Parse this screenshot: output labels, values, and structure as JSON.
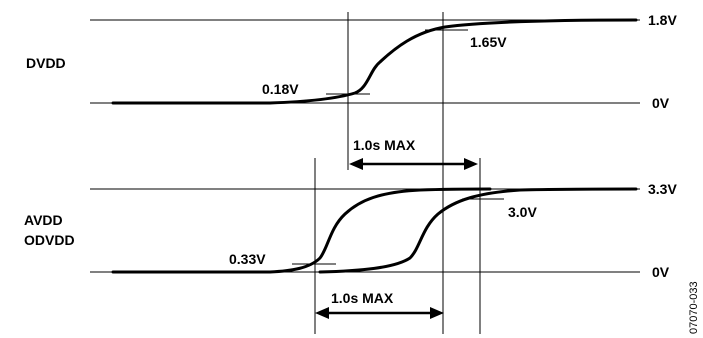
{
  "dvdd": {
    "rail_label": "DVDD",
    "top_level": "1.8V",
    "bottom_level": "0V",
    "low_threshold": "0.18V",
    "high_threshold": "1.65V"
  },
  "avdd": {
    "rail_label_line1": "AVDD",
    "rail_label_line2": "ODVDD",
    "top_level": "3.3V",
    "bottom_level": "0V",
    "low_threshold": "0.33V",
    "high_threshold": "3.0V"
  },
  "timing": {
    "upper_interval": "1.0s MAX",
    "lower_interval": "1.0s MAX"
  },
  "figure_id": "07070-033"
}
